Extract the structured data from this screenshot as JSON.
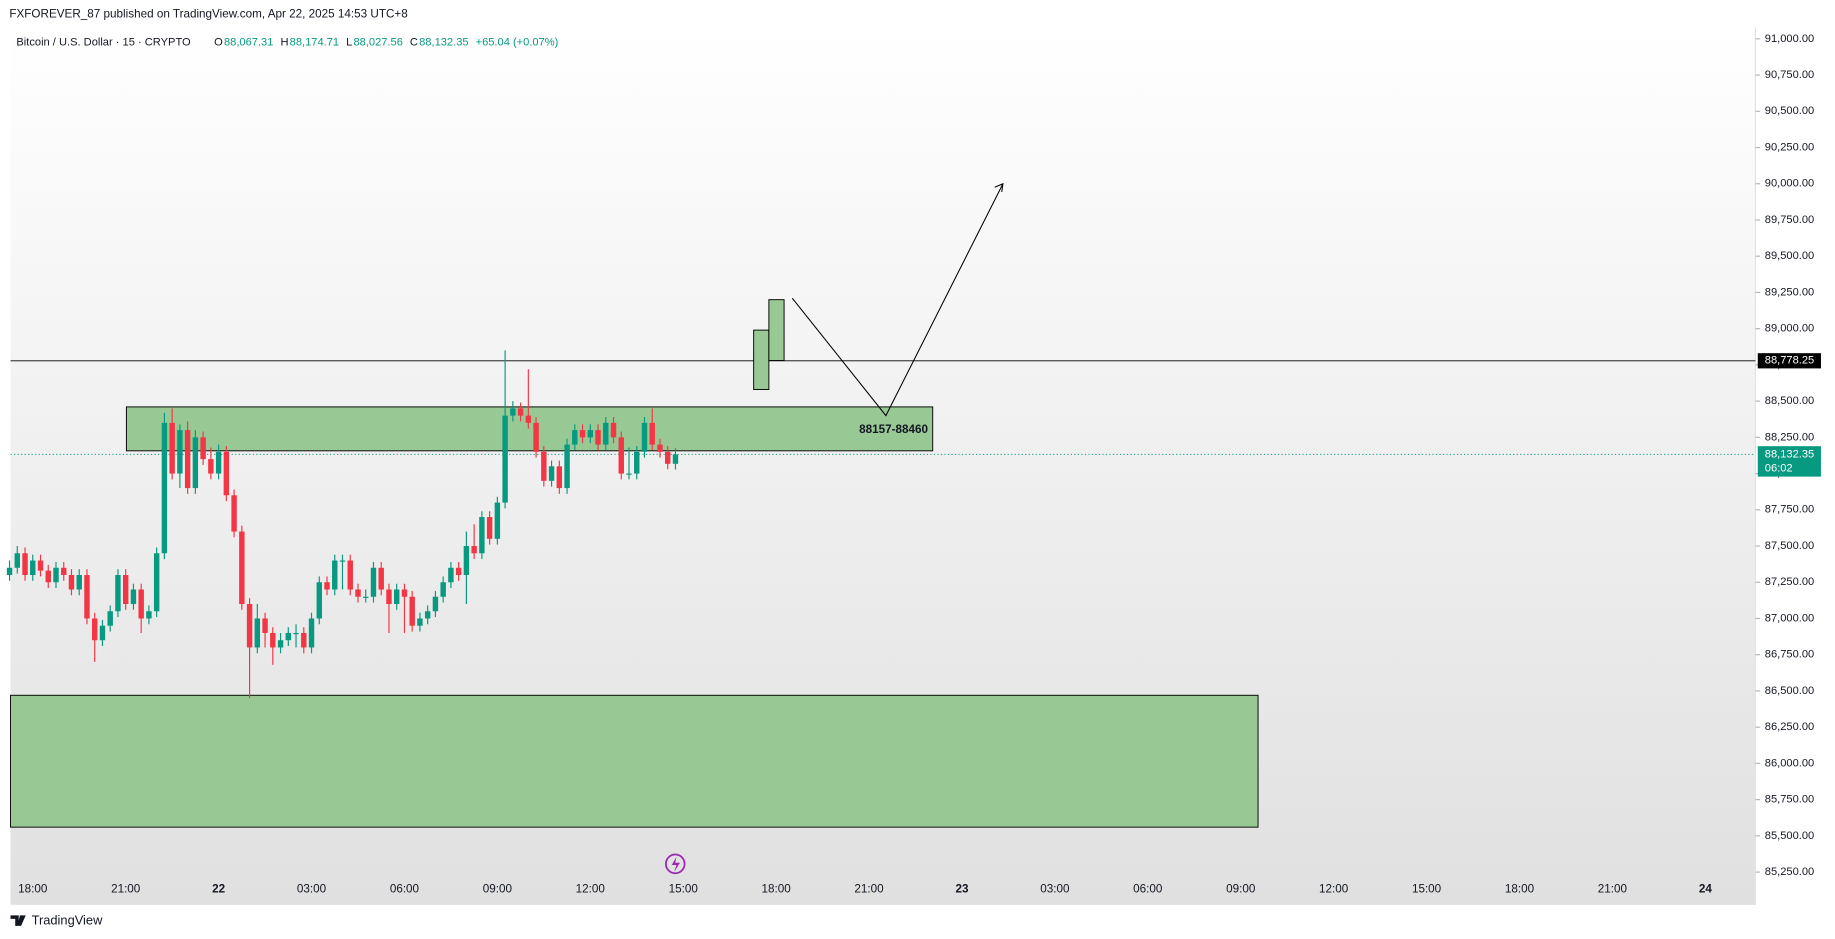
{
  "chart_data": {
    "type": "candlestick",
    "header": "FXFOREVER_87 published on TradingView.com, Apr 22, 2025 14:53 UTC+8",
    "symbol": "Bitcoin / U.S. Dollar · 15 · CRYPTO",
    "ohlc": [
      {
        "key": "O",
        "value": "88,067.31"
      },
      {
        "key": "H",
        "value": "88,174.71"
      },
      {
        "key": "L",
        "value": "88,027.56"
      },
      {
        "key": "C",
        "value": "88,132.35"
      }
    ],
    "change": "+65.04 (+0.07%)",
    "footer": "TradingView",
    "up_color": "#089981",
    "down_color": "#f23645",
    "ylim": [
      85250,
      91000
    ],
    "yticks": [
      {
        "value": 85250,
        "label": "85,250.00"
      },
      {
        "value": 85500,
        "label": "85,500.00"
      },
      {
        "value": 85750,
        "label": "85,750.00"
      },
      {
        "value": 86000,
        "label": "86,000.00"
      },
      {
        "value": 86250,
        "label": "86,250.00"
      },
      {
        "value": 86500,
        "label": "86,500.00"
      },
      {
        "value": 86750,
        "label": "86,750.00"
      },
      {
        "value": 87000,
        "label": "87,000.00"
      },
      {
        "value": 87250,
        "label": "87,250.00"
      },
      {
        "value": 87500,
        "label": "87,500.00"
      },
      {
        "value": 87750,
        "label": "87,750.00"
      },
      {
        "value": 88000,
        "label": "88,000.00"
      },
      {
        "value": 88250,
        "label": "88,250.00"
      },
      {
        "value": 88500,
        "label": "88,500.00"
      },
      {
        "value": 88750,
        "label": "88,750.00"
      },
      {
        "value": 89000,
        "label": "89,000.00"
      },
      {
        "value": 89250,
        "label": "89,250.00"
      },
      {
        "value": 89500,
        "label": "89,500.00"
      },
      {
        "value": 89750,
        "label": "89,750.00"
      },
      {
        "value": 90000,
        "label": "90,000.00"
      },
      {
        "value": 90250,
        "label": "90,250.00"
      },
      {
        "value": 90500,
        "label": "90,500.00"
      },
      {
        "value": 90750,
        "label": "90,750.00"
      },
      {
        "value": 91000,
        "label": "91,000.00"
      }
    ],
    "x_labels": [
      "18:00",
      "21:00",
      "22",
      "03:00",
      "06:00",
      "09:00",
      "12:00",
      "15:00",
      "18:00",
      "21:00",
      "23",
      "03:00",
      "06:00",
      "09:00",
      "12:00",
      "15:00",
      "18:00",
      "21:00",
      "24"
    ],
    "candles": [
      [
        87300,
        87400,
        87260,
        87350
      ],
      [
        87350,
        87500,
        87310,
        87450
      ],
      [
        87450,
        87490,
        87260,
        87300
      ],
      [
        87300,
        87440,
        87260,
        87400
      ],
      [
        87400,
        87440,
        87290,
        87330
      ],
      [
        87330,
        87370,
        87210,
        87250
      ],
      [
        87250,
        87390,
        87210,
        87350
      ],
      [
        87350,
        87390,
        87260,
        87300
      ],
      [
        87300,
        87340,
        87160,
        87200
      ],
      [
        87200,
        87340,
        87160,
        87300
      ],
      [
        87300,
        87340,
        86960,
        87000
      ],
      [
        87000,
        87040,
        86700,
        86850
      ],
      [
        86850,
        86990,
        86810,
        86950
      ],
      [
        86950,
        87090,
        86910,
        87050
      ],
      [
        87050,
        87340,
        87010,
        87300
      ],
      [
        87300,
        87340,
        87060,
        87100
      ],
      [
        87100,
        87240,
        87060,
        87200
      ],
      [
        87200,
        87240,
        86900,
        87000
      ],
      [
        87000,
        87090,
        86960,
        87050
      ],
      [
        87050,
        87490,
        87010,
        87450
      ],
      [
        87450,
        88420,
        87410,
        88350
      ],
      [
        88350,
        88450,
        87960,
        88000
      ],
      [
        88000,
        88340,
        87900,
        88300
      ],
      [
        88300,
        88360,
        87860,
        87900
      ],
      [
        87900,
        88300,
        87860,
        88250
      ],
      [
        88250,
        88290,
        88060,
        88100
      ],
      [
        88100,
        88180,
        87960,
        88000
      ],
      [
        88000,
        88200,
        87960,
        88150
      ],
      [
        88150,
        88190,
        87810,
        87850
      ],
      [
        87850,
        87890,
        87560,
        87600
      ],
      [
        87600,
        87640,
        87060,
        87100
      ],
      [
        87100,
        87140,
        86450,
        86800
      ],
      [
        86800,
        87100,
        86760,
        87000
      ],
      [
        87000,
        87040,
        86800,
        86900
      ],
      [
        86900,
        86940,
        86680,
        86800
      ],
      [
        86800,
        86900,
        86760,
        86850
      ],
      [
        86850,
        86940,
        86810,
        86900
      ],
      [
        86900,
        86960,
        86800,
        86900
      ],
      [
        86900,
        86940,
        86760,
        86800
      ],
      [
        86800,
        87040,
        86760,
        87000
      ],
      [
        87000,
        87290,
        86960,
        87250
      ],
      [
        87250,
        87290,
        87160,
        87200
      ],
      [
        87200,
        87440,
        87160,
        87400
      ],
      [
        87400,
        87440,
        87200,
        87400
      ],
      [
        87400,
        87440,
        87160,
        87200
      ],
      [
        87200,
        87240,
        87110,
        87150
      ],
      [
        87150,
        87200,
        87110,
        87150
      ],
      [
        87150,
        87390,
        87110,
        87350
      ],
      [
        87350,
        87390,
        87160,
        87200
      ],
      [
        87200,
        87240,
        86900,
        87100
      ],
      [
        87100,
        87240,
        87060,
        87200
      ],
      [
        87200,
        87240,
        86900,
        87150
      ],
      [
        87150,
        87190,
        86910,
        86950
      ],
      [
        86950,
        87040,
        86910,
        87000
      ],
      [
        87000,
        87090,
        86960,
        87050
      ],
      [
        87050,
        87190,
        87010,
        87150
      ],
      [
        87150,
        87290,
        87110,
        87250
      ],
      [
        87250,
        87390,
        87210,
        87350
      ],
      [
        87350,
        87390,
        87260,
        87300
      ],
      [
        87300,
        87600,
        87100,
        87500
      ],
      [
        87500,
        87650,
        87410,
        87450
      ],
      [
        87450,
        87740,
        87410,
        87700
      ],
      [
        87700,
        87740,
        87510,
        87550
      ],
      [
        87550,
        87840,
        87510,
        87800
      ],
      [
        87800,
        88850,
        87760,
        88400
      ],
      [
        88400,
        88500,
        88360,
        88450
      ],
      [
        88450,
        88490,
        88360,
        88400
      ],
      [
        88400,
        88720,
        88310,
        88350
      ],
      [
        88350,
        88390,
        88110,
        88150
      ],
      [
        88150,
        88190,
        87910,
        87950
      ],
      [
        87950,
        88090,
        87910,
        88050
      ],
      [
        88050,
        88090,
        87860,
        87900
      ],
      [
        87900,
        88240,
        87860,
        88200
      ],
      [
        88200,
        88340,
        88160,
        88300
      ],
      [
        88300,
        88340,
        88210,
        88250
      ],
      [
        88250,
        88340,
        88210,
        88300
      ],
      [
        88300,
        88340,
        88160,
        88200
      ],
      [
        88200,
        88390,
        88160,
        88350
      ],
      [
        88350,
        88390,
        88210,
        88250
      ],
      [
        88250,
        88290,
        87960,
        88000
      ],
      [
        88000,
        88180,
        87960,
        88000
      ],
      [
        88000,
        88190,
        87960,
        88150
      ],
      [
        88150,
        88390,
        88110,
        88350
      ],
      [
        88350,
        88450,
        88160,
        88200
      ],
      [
        88200,
        88240,
        88110,
        88150
      ],
      [
        88150,
        88190,
        88030,
        88067.31
      ],
      [
        88067.31,
        88174.71,
        88027.56,
        88132.35
      ]
    ],
    "hline": {
      "value": 88778.25,
      "label": "88,778.25"
    },
    "last_price": {
      "value": 88132.35,
      "label": "88,132.35",
      "countdown": "06:02"
    },
    "zones": [
      {
        "top": 88460,
        "bottom": 88157,
        "label": "88157-88460"
      },
      {
        "top": 86470,
        "bottom": 85560
      }
    ],
    "projection_boxes": [
      {
        "top": 88990,
        "bottom": 88580
      },
      {
        "top": 89200,
        "bottom": 88780
      }
    ],
    "path_arrow": [
      89210,
      88400,
      90000
    ],
    "zone_color": "#98c995"
  }
}
